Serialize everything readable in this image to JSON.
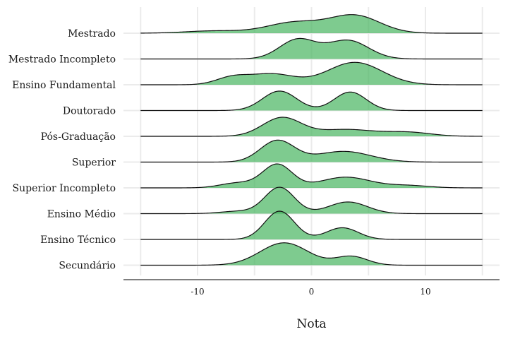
{
  "chart_data": {
    "type": "ridgeline",
    "xlabel": "Nota",
    "ylabel": "",
    "xlim": [
      -16.5,
      16.5
    ],
    "x_ticks": [
      -10,
      0,
      10
    ],
    "x_tick_labels": [
      "-10",
      "0",
      "10"
    ],
    "fill_color": "#41b35a",
    "line_color": "#111111",
    "grid": true,
    "series": [
      {
        "name": "Mestrado",
        "range": [
          -15,
          15
        ],
        "components": [
          [
            0.12,
            -8.5,
            2.5
          ],
          [
            0.55,
            -1.5,
            2.4
          ],
          [
            0.9,
            3.8,
            2.2
          ]
        ]
      },
      {
        "name": "Mestrado Incompleto",
        "range": [
          -15,
          15
        ],
        "components": [
          [
            1.0,
            -1.2,
            1.6
          ],
          [
            0.95,
            3.2,
            1.8
          ]
        ]
      },
      {
        "name": "Ensino Fundamental",
        "range": [
          -15,
          15
        ],
        "components": [
          [
            0.35,
            -7.0,
            1.4
          ],
          [
            0.55,
            -3.5,
            2.0
          ],
          [
            1.15,
            3.8,
            2.4
          ]
        ]
      },
      {
        "name": "Doutorado",
        "range": [
          -15,
          15
        ],
        "components": [
          [
            1.0,
            -2.8,
            1.5
          ],
          [
            0.95,
            3.4,
            1.4
          ]
        ]
      },
      {
        "name": "Pós-Graduação",
        "range": [
          -15,
          15
        ],
        "components": [
          [
            0.95,
            -2.6,
            1.7
          ],
          [
            0.35,
            3.0,
            2.5
          ],
          [
            0.2,
            8.5,
            2.0
          ]
        ]
      },
      {
        "name": "Superior",
        "range": [
          -15,
          15
        ],
        "components": [
          [
            1.1,
            -3.0,
            1.5
          ],
          [
            0.55,
            2.8,
            2.4
          ]
        ]
      },
      {
        "name": "Superior Incompleto",
        "range": [
          -15,
          15
        ],
        "components": [
          [
            1.2,
            -3.0,
            1.3
          ],
          [
            0.25,
            -6.5,
            1.5
          ],
          [
            0.55,
            3.0,
            2.2
          ],
          [
            0.12,
            8.5,
            1.8
          ]
        ]
      },
      {
        "name": "Ensino Médio",
        "range": [
          -15,
          15
        ],
        "components": [
          [
            1.35,
            -2.8,
            1.3
          ],
          [
            0.6,
            3.2,
            1.7
          ],
          [
            0.12,
            -6.5,
            1.5
          ]
        ]
      },
      {
        "name": "Ensino Técnico",
        "range": [
          -15,
          15
        ],
        "components": [
          [
            1.45,
            -2.8,
            1.3
          ],
          [
            0.6,
            2.7,
            1.4
          ]
        ]
      },
      {
        "name": "Secundário",
        "range": [
          -15,
          15
        ],
        "components": [
          [
            1.15,
            -2.4,
            2.1
          ],
          [
            0.45,
            3.5,
            1.4
          ]
        ]
      }
    ]
  }
}
